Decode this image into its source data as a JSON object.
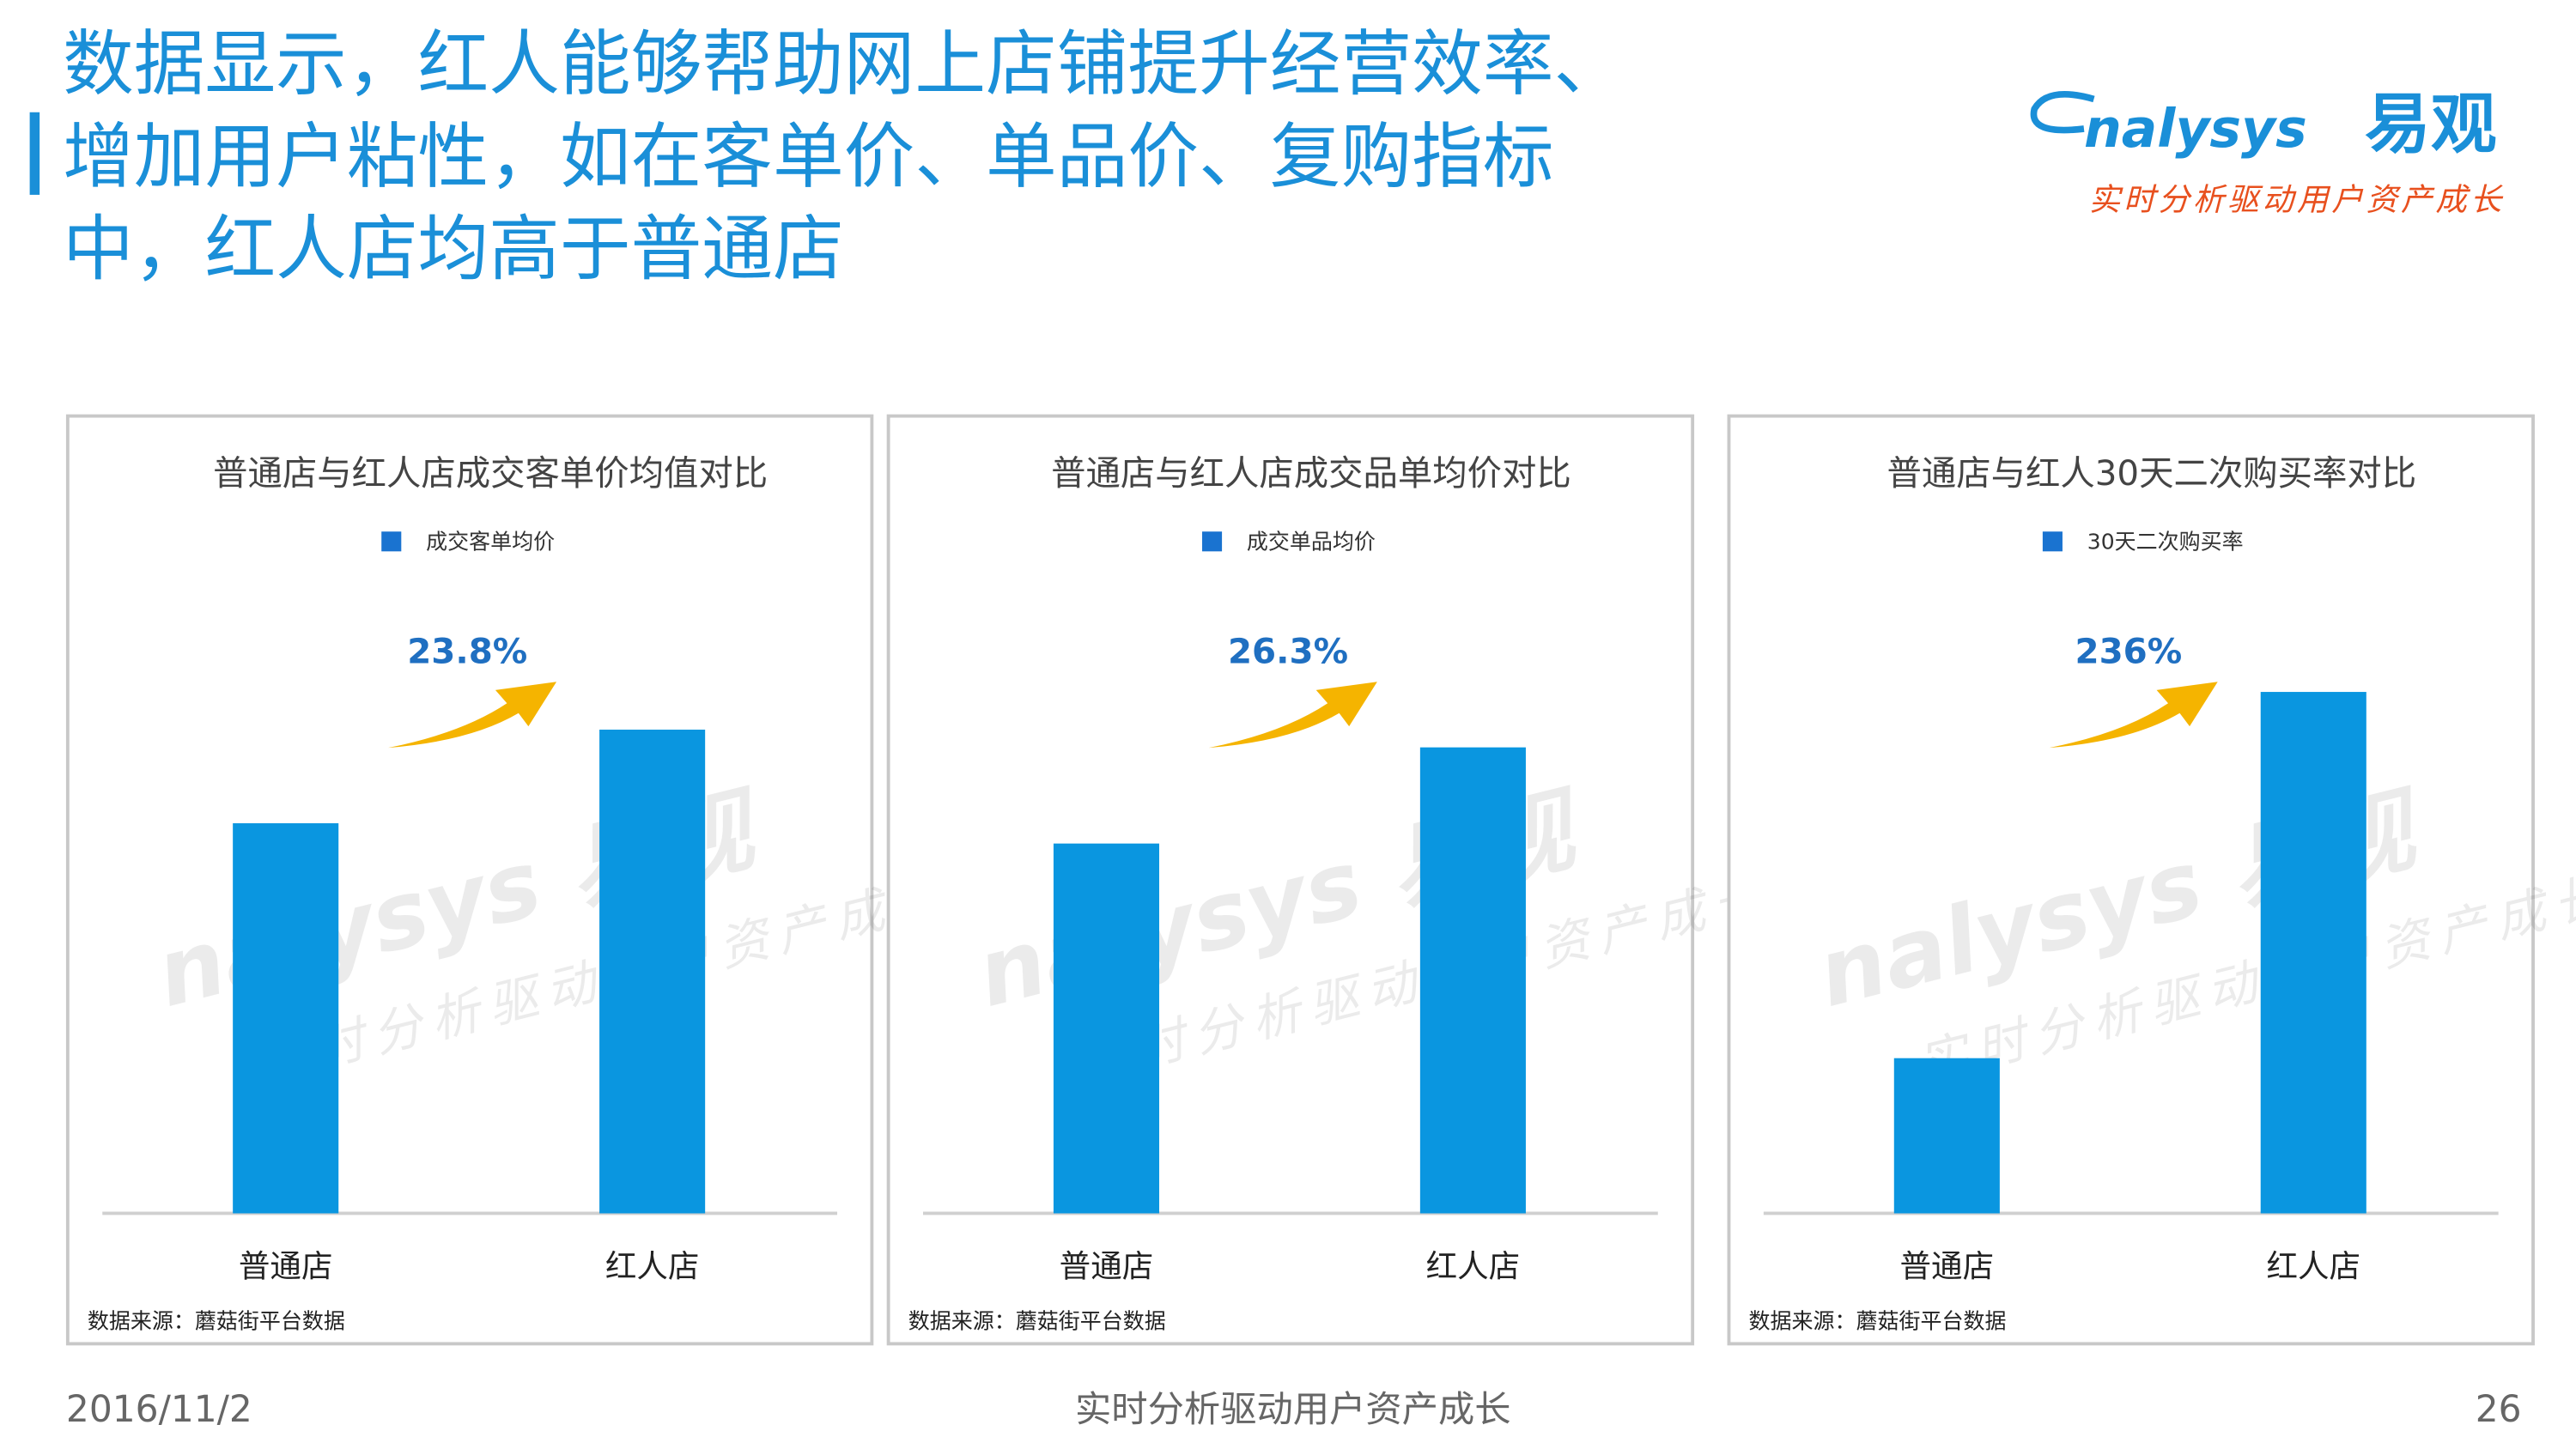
{
  "header": {
    "title": [
      "数据显示，红人能够帮助网上店铺提升经营效率、",
      "增加用户粘性，如在客单价、单品价、复购指标",
      "中，红人店均高于普通店"
    ],
    "logo": "nalysys",
    "logo_cn": "易观",
    "slogan": "实时分析驱动用户资产成长"
  },
  "watermark": {
    "brand": "nalysys 易观",
    "slogan": "实时分析驱动用户资产成长"
  },
  "chart_data": [
    {
      "type": "bar",
      "title": "普通店与红人店成交客单价均值对比",
      "categories": [
        "普通店",
        "红人店"
      ],
      "series": [
        {
          "name": "成交客单均价",
          "color": "#0a96e0",
          "values": [
            100,
            124
          ]
        }
      ],
      "ylim": [
        0,
        146
      ],
      "annotation": "23.8%",
      "source": "数据来源：蘑菇街平台数据"
    },
    {
      "type": "bar",
      "title": "普通店与红人店成交品单均价对比",
      "categories": [
        "普通店",
        "红人店"
      ],
      "series": [
        {
          "name": "成交单品均价",
          "color": "#0a96e0",
          "values": [
            100,
            126
          ]
        }
      ],
      "ylim": [
        0,
        154
      ],
      "annotation": "26.3%",
      "source": "数据来源：蘑菇街平台数据"
    },
    {
      "type": "bar",
      "title": "普通店与红人30天二次购买率对比",
      "categories": [
        "普通店",
        "红人店"
      ],
      "series": [
        {
          "name": "30天二次购买率",
          "color": "#0a96e0",
          "values": [
            100,
            336
          ]
        }
      ],
      "ylim": [
        0,
        367
      ],
      "annotation": "236%",
      "source": "数据来源：蘑菇街平台数据"
    }
  ],
  "footer": {
    "date": "2016/11/2",
    "slogan": "实时分析驱动用户资产成长",
    "page": "26"
  }
}
